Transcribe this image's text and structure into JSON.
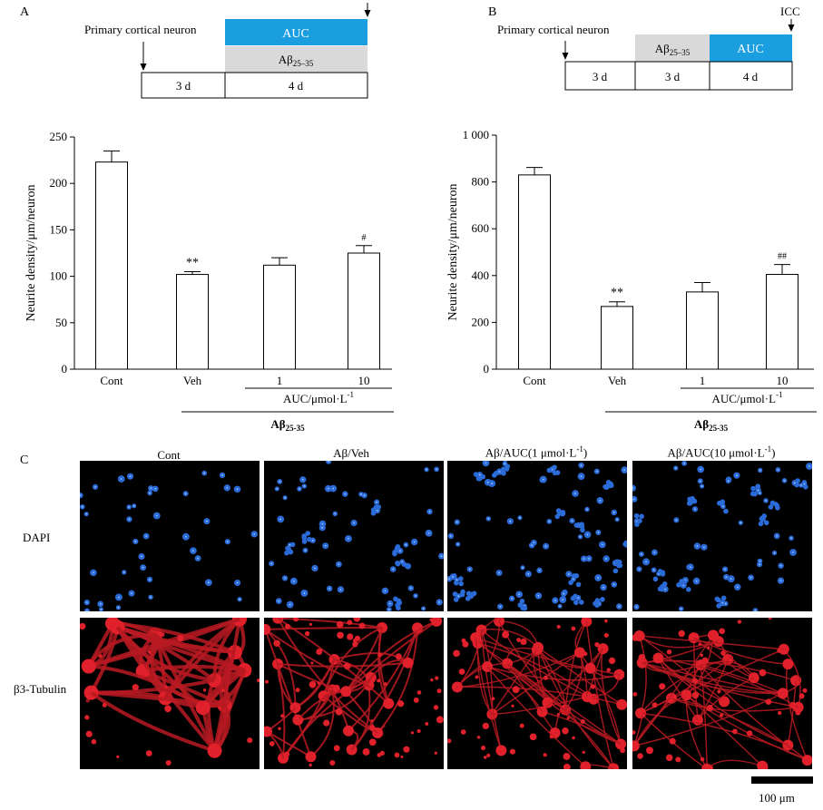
{
  "panels": {
    "A": {
      "letter": "A",
      "timeline": {
        "start_label": "Primary cortical neuron",
        "treatments": [
          {
            "label": "AUC",
            "color": "#1a9ee0"
          },
          {
            "label_main": "Aβ",
            "label_sub": "25–35",
            "color": "#d9d9d9"
          }
        ],
        "durations": [
          "3 d",
          "4 d"
        ]
      }
    },
    "B": {
      "letter": "B",
      "timeline": {
        "start_label": "Primary cortical neuron",
        "end_label": "ICC",
        "treatments": [
          {
            "label_main": "Aβ",
            "label_sub": "25–35",
            "color": "#d9d9d9"
          },
          {
            "label": "AUC",
            "color": "#1a9ee0"
          }
        ],
        "durations": [
          "3 d",
          "3 d",
          "4 d"
        ]
      }
    },
    "C": {
      "letter": "C",
      "columns": [
        "Cont",
        "Aβ/Veh",
        "Aβ/AUC(1 μmol·L",
        "Aβ/AUC(10 μmol·L"
      ],
      "column_superscript": "-1",
      "column_suffix": ")",
      "rows": [
        "DAPI",
        "β3-Tubulin"
      ],
      "scale_bar": "100 μm",
      "colors": {
        "dapi": "#2a6bd8",
        "tubulin": "#e0202a",
        "background": "#000000"
      }
    }
  },
  "chart_data": [
    {
      "type": "bar",
      "panel": "A",
      "categories": [
        "Cont",
        "Veh",
        "1",
        "10"
      ],
      "values": [
        223,
        102,
        112,
        125
      ],
      "errors": [
        12,
        3,
        8,
        8
      ],
      "significance": [
        "",
        "**",
        "",
        "#"
      ],
      "ylabel": "Neurite density/μm/neuron",
      "ylim": [
        0,
        250
      ],
      "yticks": [
        "0",
        "50",
        "100",
        "150",
        "200",
        "250"
      ],
      "ytick_values": [
        0,
        50,
        100,
        150,
        200,
        250
      ],
      "group_label_main": "AUC/μmol·L",
      "group_label_sup": "-1",
      "treatment_label_main": "Aβ",
      "treatment_label_sub": "25-35"
    },
    {
      "type": "bar",
      "panel": "B",
      "categories": [
        "Cont",
        "Veh",
        "1",
        "10"
      ],
      "values": [
        830,
        268,
        330,
        405
      ],
      "errors": [
        32,
        20,
        40,
        42
      ],
      "significance": [
        "",
        "**",
        "",
        "##"
      ],
      "ylabel": "Neurite density/μm/neuron",
      "ylim": [
        0,
        1000
      ],
      "yticks": [
        "0",
        "200",
        "400",
        "600",
        "800",
        "1 000"
      ],
      "ytick_values": [
        0,
        200,
        400,
        600,
        800,
        1000
      ],
      "group_label_main": "AUC/μmol·L",
      "group_label_sup": "-1",
      "treatment_label_main": "Aβ",
      "treatment_label_sub": "25-35"
    }
  ]
}
